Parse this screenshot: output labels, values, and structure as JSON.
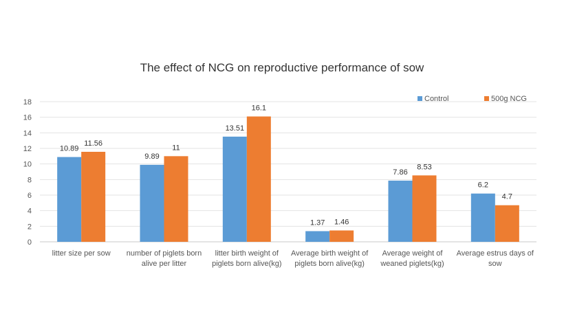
{
  "chart_data": {
    "type": "bar",
    "title": "The effect of NCG on reproductive performance of sow",
    "xlabel": "",
    "ylabel": "",
    "ylim": [
      0,
      18
    ],
    "yticks": [
      0,
      2,
      4,
      6,
      8,
      10,
      12,
      14,
      16,
      18
    ],
    "grid": true,
    "legend_position": "top-right",
    "categories": [
      [
        "litter size per sow"
      ],
      [
        "number of piglets born",
        "alive per litter"
      ],
      [
        "litter birth weight of",
        "piglets born alive(kg)"
      ],
      [
        "Average birth weight of",
        "piglets born alive(kg)"
      ],
      [
        "Average weight of",
        "weaned piglets(kg)"
      ],
      [
        "Average estrus days of",
        "sow"
      ]
    ],
    "series": [
      {
        "name": "Control",
        "color": "#5B9BD5",
        "values": [
          10.89,
          9.89,
          13.51,
          1.37,
          7.86,
          6.2
        ],
        "labels": [
          "10.89",
          "9.89",
          "13.51",
          "1.37",
          "7.86",
          "6.2"
        ]
      },
      {
        "name": "500g NCG",
        "color": "#ED7D31",
        "values": [
          11.56,
          11,
          16.1,
          1.46,
          8.53,
          4.7
        ],
        "labels": [
          "11.56",
          "11",
          "16.1",
          "1.46",
          "8.53",
          "4.7"
        ]
      }
    ]
  }
}
